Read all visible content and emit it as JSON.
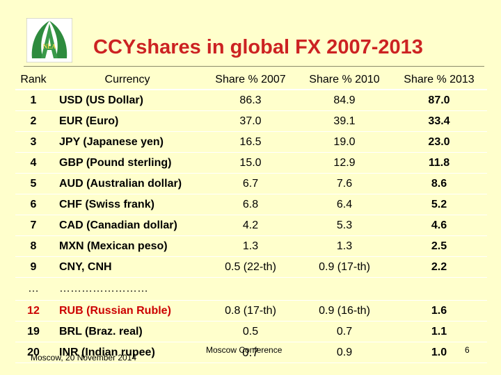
{
  "slide": {
    "title": "CCYshares in global FX 2007-2013",
    "logo": {
      "icon": "nea-logo-icon",
      "text": "NEA",
      "colors": {
        "green": "#2e8b3e",
        "yellow": "#e8d84a"
      }
    }
  },
  "table": {
    "headers": {
      "rank": "Rank",
      "currency": "Currency",
      "share_2007": "Share % 2007",
      "share_2010": "Share % 2010",
      "share_2013": "Share % 2013"
    },
    "rows": [
      {
        "rank": "1",
        "currency": "USD (US Dollar)",
        "s2007": "86.3",
        "s2010": "84.9",
        "s2013": "87.0"
      },
      {
        "rank": "2",
        "currency": "EUR (Euro)",
        "s2007": "37.0",
        "s2010": "39.1",
        "s2013": "33.4"
      },
      {
        "rank": "3",
        "currency": "JPY (Japanese yen)",
        "s2007": "16.5",
        "s2010": "19.0",
        "s2013": "23.0"
      },
      {
        "rank": "4",
        "currency": "GBP (Pound sterling)",
        "s2007": "15.0",
        "s2010": "12.9",
        "s2013": "11.8"
      },
      {
        "rank": "5",
        "currency": "AUD (Australian dollar)",
        "s2007": "6.7",
        "s2010": "7.6",
        "s2013": "8.6"
      },
      {
        "rank": "6",
        "currency": "CHF (Swiss frank)",
        "s2007": "6.8",
        "s2010": "6.4",
        "s2013": "5.2"
      },
      {
        "rank": "7",
        "currency": "CAD (Canadian dollar)",
        "s2007": "4.2",
        "s2010": "5.3",
        "s2013": "4.6"
      },
      {
        "rank": "8",
        "currency": "MXN (Mexican peso)",
        "s2007": "1.3",
        "s2010": "1.3",
        "s2013": "2.5"
      },
      {
        "rank": "9",
        "currency": "CNY, CNH",
        "s2007": "0.5 (22-th)",
        "s2010": "0.9 (17-th)",
        "s2013": "2.2"
      },
      {
        "rank": "…",
        "currency": "……………………",
        "s2007": "",
        "s2010": "",
        "s2013": ""
      },
      {
        "rank": "12",
        "currency": "RUB (Russian Ruble)",
        "s2007": "0.8 (17-th)",
        "s2010": "0.9 (16-th)",
        "s2013": "1.6"
      },
      {
        "rank": "19",
        "currency": "BRL (Braz. real)",
        "s2007": "0.5",
        "s2010": "0.7",
        "s2013": "1.1"
      },
      {
        "rank": "20",
        "currency": "INR (Indian rupee)",
        "s2007": "0.7",
        "s2010": "0.9",
        "s2013": "1.0"
      }
    ]
  },
  "footer": {
    "left": "Moscow, 20 November 2014",
    "center": "Moscow Conference",
    "page_number": "6"
  }
}
